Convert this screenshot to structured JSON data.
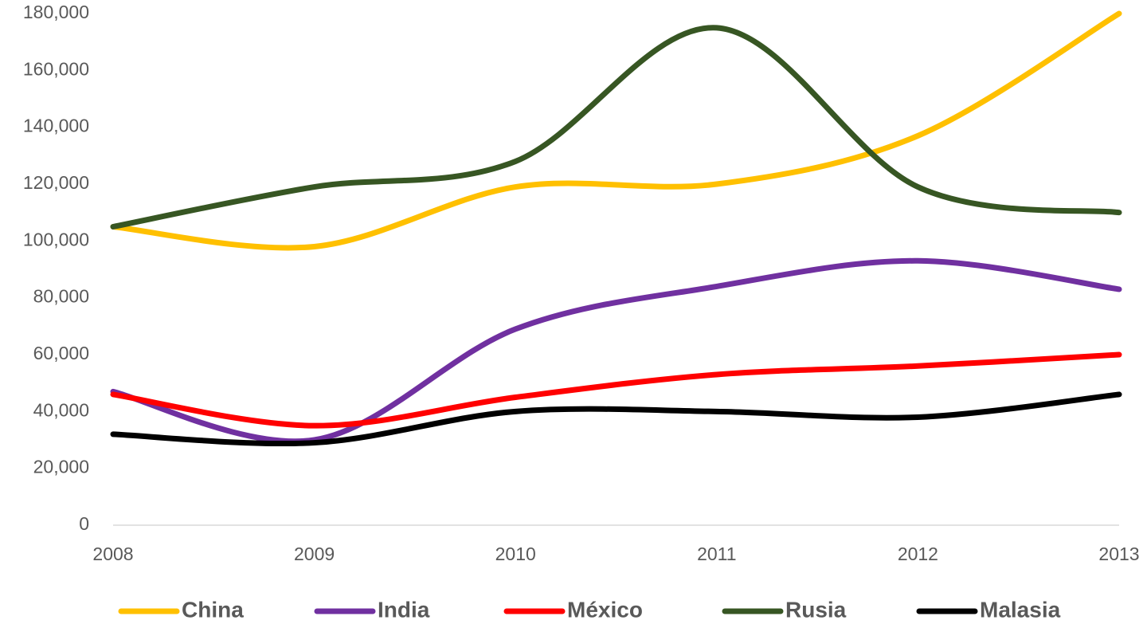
{
  "chart_data": {
    "type": "line",
    "x": [
      2008,
      2009,
      2010,
      2011,
      2012,
      2013
    ],
    "xlim": [
      2008,
      2013
    ],
    "xticks": [
      2008,
      2009,
      2010,
      2011,
      2012,
      2013
    ],
    "ylim": [
      0,
      180000
    ],
    "yticks": [
      0,
      {
        "value": 20000,
        "label": "20,000"
      },
      {
        "value": 40000,
        "label": "40,000"
      },
      {
        "value": 60000,
        "label": "60,000"
      },
      {
        "value": 80000,
        "label": "80,000"
      },
      {
        "value": 100000,
        "label": "100,000"
      },
      {
        "value": 120000,
        "label": "120,000"
      },
      {
        "value": 140000,
        "label": "140,000"
      },
      {
        "value": 160000,
        "label": "160,000"
      },
      {
        "value": 180000,
        "label": "180,000"
      }
    ],
    "grid": false,
    "smooth": true,
    "legend": "bottom",
    "series": [
      {
        "name": "China",
        "color": "#ffc000",
        "values": [
          105000,
          98000,
          119000,
          120000,
          137000,
          180000
        ]
      },
      {
        "name": "India",
        "color": "#7030a0",
        "values": [
          47000,
          30000,
          69000,
          84000,
          93000,
          83000
        ]
      },
      {
        "name": "México",
        "color": "#ff0000",
        "values": [
          46000,
          35000,
          45000,
          53000,
          56000,
          60000
        ]
      },
      {
        "name": "Rusia",
        "color": "#375623",
        "values": [
          105000,
          119000,
          128000,
          175000,
          119000,
          110000
        ]
      },
      {
        "name": "Malasia",
        "color": "#000000",
        "values": [
          32000,
          29000,
          40000,
          40000,
          38000,
          46000
        ]
      }
    ]
  }
}
